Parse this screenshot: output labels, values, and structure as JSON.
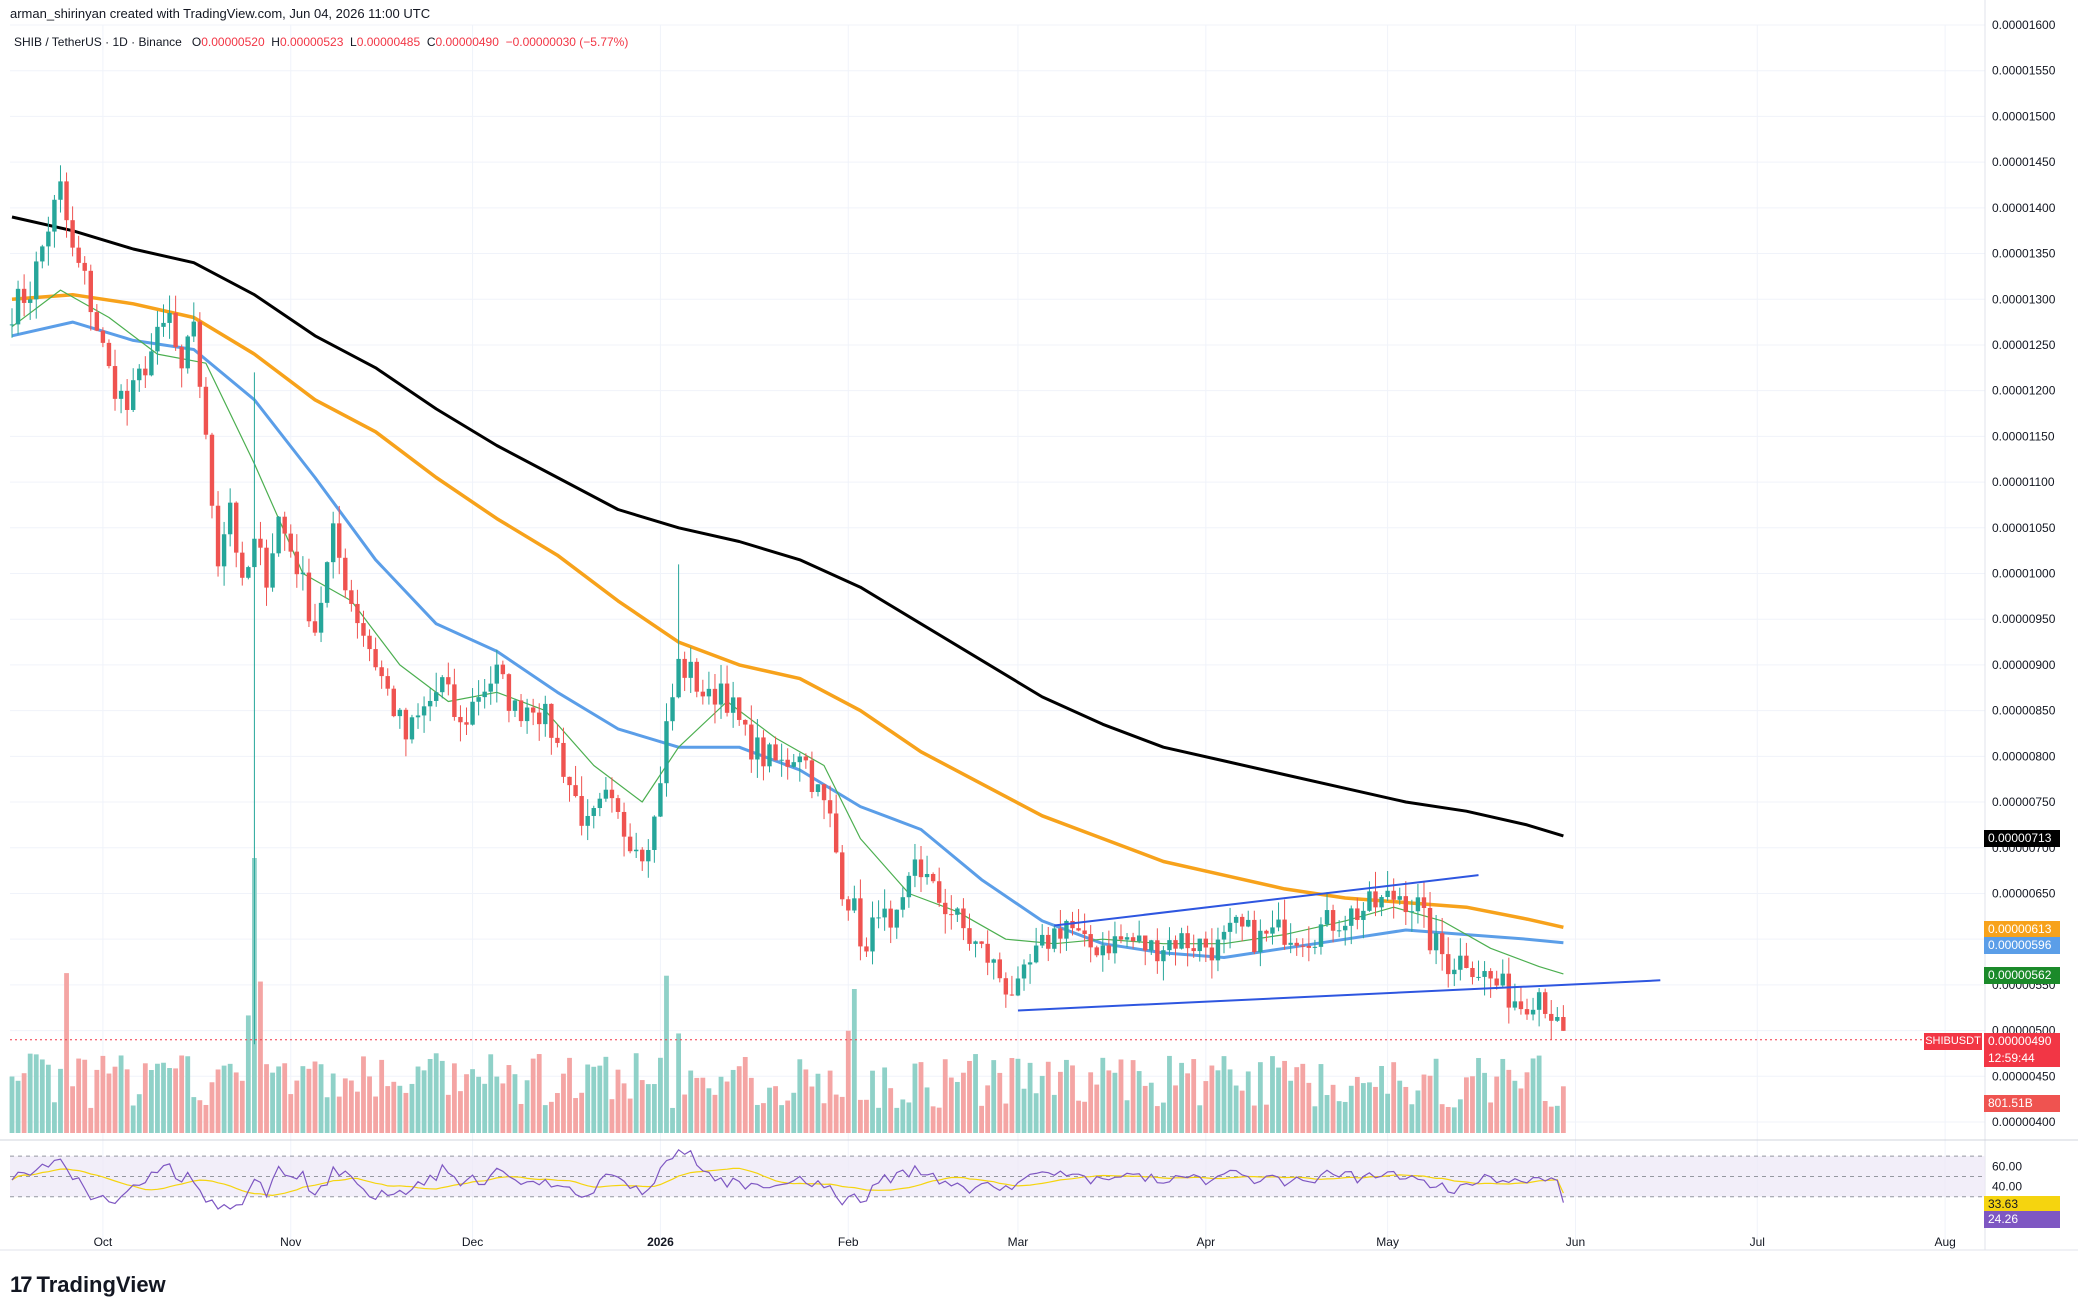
{
  "header": {
    "attribution": "arman_shirinyan created with TradingView.com, Jun 04, 2026 11:00 UTC"
  },
  "legend": {
    "symbol": "SHIB / TetherUS · 1D · Binance",
    "o_label": "O",
    "o_value": "0.00000520",
    "h_label": "H",
    "h_value": "0.00000523",
    "l_label": "L",
    "l_value": "0.00000485",
    "c_label": "C",
    "c_value": "0.00000490",
    "change": "−0.00000030 (−5.77%)"
  },
  "badges": {
    "ma200": "0.00000713",
    "ma100": "0.00000613",
    "ma50": "0.00000596",
    "ma20": "0.00000562",
    "symbol": "SHIBUSDT",
    "last": "0.00000490",
    "countdown": "12:59:44",
    "volume": "801.51B",
    "rsi_signal": "33.63",
    "rsi": "24.26"
  },
  "colors": {
    "up": "#26a69a",
    "down": "#ef5350",
    "up_vol": "#8fd1c8",
    "down_vol": "#f4a5a4",
    "ma200": "#000000",
    "ma100": "#f7a21b",
    "ma50": "#5b9ee8",
    "ma20": "#4caf50",
    "trendline": "#2e56e0",
    "rsi_line": "#7e57c2",
    "rsi_signal": "#f5d40f"
  },
  "footer": {
    "logo_text": "TradingView",
    "logo_mark": "17"
  },
  "chart_data": {
    "type": "candlestick",
    "symbol": "SHIB / TetherUS",
    "interval": "1D",
    "exchange": "Binance",
    "y_axis_ticks": [
      "0.00001600",
      "0.00001550",
      "0.00001500",
      "0.00001450",
      "0.00001400",
      "0.00001350",
      "0.00001300",
      "0.00001250",
      "0.00001200",
      "0.00001150",
      "0.00001100",
      "0.00001050",
      "0.00001000",
      "0.00000950",
      "0.00000900",
      "0.00000850",
      "0.00000800",
      "0.00000750",
      "0.00000700",
      "0.00000650",
      "0.00000600",
      "0.00000550",
      "0.00000500",
      "0.00000450",
      "0.00000400"
    ],
    "y_axis_values": [
      16.0,
      15.5,
      15.0,
      14.5,
      14.0,
      13.5,
      13.0,
      12.5,
      12.0,
      11.5,
      11.0,
      10.5,
      10.0,
      9.5,
      9.0,
      8.5,
      8.0,
      7.5,
      7.0,
      6.5,
      6.0,
      5.5,
      5.0,
      4.5,
      4.0
    ],
    "ylim": [
      4.0,
      16.0
    ],
    "y_units": "1e-6 USDT",
    "x_axis_ticks": [
      {
        "label": "Oct",
        "day": 15,
        "bold": false
      },
      {
        "label": "Nov",
        "day": 46,
        "bold": false
      },
      {
        "label": "Dec",
        "day": 76,
        "bold": false
      },
      {
        "label": "2026",
        "day": 107,
        "bold": true
      },
      {
        "label": "Feb",
        "day": 138,
        "bold": false
      },
      {
        "label": "Mar",
        "day": 166,
        "bold": false
      },
      {
        "label": "Apr",
        "day": 197,
        "bold": false
      },
      {
        "label": "May",
        "day": 227,
        "bold": false
      },
      {
        "label": "Jun",
        "day": 258,
        "bold": false
      },
      {
        "label": "Jul",
        "day": 288,
        "bold": false
      },
      {
        "label": "Aug",
        "day": 319,
        "bold": false
      }
    ],
    "rsi_axis_ticks": [
      "60.00",
      "40.00"
    ],
    "rsi_axis_values": [
      60,
      40
    ],
    "candle_count": 261,
    "anchors": [
      [
        0,
        12.9
      ],
      [
        3,
        13.1
      ],
      [
        6,
        13.8
      ],
      [
        8,
        14.2
      ],
      [
        10,
        13.5
      ],
      [
        12,
        13.2
      ],
      [
        14,
        12.7
      ],
      [
        16,
        12.2
      ],
      [
        19,
        11.8
      ],
      [
        22,
        12.3
      ],
      [
        26,
        12.8
      ],
      [
        28,
        12.1
      ],
      [
        30,
        12.8
      ],
      [
        32,
        11.4
      ],
      [
        34,
        10.2
      ],
      [
        36,
        10.8
      ],
      [
        38,
        9.8
      ],
      [
        40,
        10.3
      ],
      [
        42,
        10.0
      ],
      [
        44,
        10.6
      ],
      [
        47,
        10.1
      ],
      [
        50,
        9.4
      ],
      [
        53,
        10.4
      ],
      [
        56,
        9.7
      ],
      [
        59,
        9.2
      ],
      [
        62,
        8.7
      ],
      [
        65,
        8.2
      ],
      [
        68,
        8.5
      ],
      [
        71,
        8.8
      ],
      [
        74,
        8.3
      ],
      [
        77,
        8.7
      ],
      [
        80,
        8.9
      ],
      [
        83,
        8.5
      ],
      [
        86,
        8.6
      ],
      [
        89,
        8.3
      ],
      [
        92,
        7.7
      ],
      [
        95,
        7.2
      ],
      [
        98,
        7.5
      ],
      [
        101,
        7.2
      ],
      [
        104,
        7.0
      ],
      [
        106,
        7.3
      ],
      [
        108,
        8.3
      ],
      [
        110,
        9.0
      ],
      [
        112,
        8.9
      ],
      [
        115,
        8.6
      ],
      [
        117,
        8.8
      ],
      [
        119,
        8.5
      ],
      [
        121,
        8.2
      ],
      [
        124,
        8.0
      ],
      [
        127,
        7.9
      ],
      [
        130,
        8.1
      ],
      [
        133,
        7.6
      ],
      [
        135,
        7.3
      ],
      [
        137,
        6.6
      ],
      [
        139,
        6.3
      ],
      [
        141,
        5.8
      ],
      [
        143,
        6.4
      ],
      [
        145,
        6.0
      ],
      [
        147,
        6.3
      ],
      [
        149,
        6.9
      ],
      [
        152,
        6.5
      ],
      [
        155,
        6.3
      ],
      [
        158,
        6.0
      ],
      [
        161,
        5.8
      ],
      [
        164,
        5.5
      ],
      [
        166,
        5.4
      ],
      [
        168,
        5.7
      ],
      [
        171,
        6.0
      ],
      [
        174,
        6.2
      ],
      [
        177,
        5.9
      ],
      [
        180,
        5.95
      ],
      [
        184,
        6.0
      ],
      [
        188,
        5.9
      ],
      [
        192,
        6.0
      ],
      [
        196,
        5.95
      ],
      [
        199,
        5.9
      ],
      [
        202,
        6.1
      ],
      [
        206,
        6.0
      ],
      [
        210,
        6.1
      ],
      [
        214,
        6.05
      ],
      [
        218,
        6.2
      ],
      [
        222,
        6.3
      ],
      [
        226,
        6.4
      ],
      [
        229,
        6.5
      ],
      [
        232,
        6.35
      ],
      [
        234,
        6.0
      ],
      [
        237,
        5.75
      ],
      [
        240,
        5.8
      ],
      [
        243,
        5.6
      ],
      [
        246,
        5.45
      ],
      [
        249,
        5.3
      ],
      [
        252,
        5.45
      ],
      [
        254,
        5.2
      ],
      [
        255,
        5.0
      ],
      [
        256,
        4.9
      ]
    ],
    "notable": {
      "spike_low": {
        "day": 40,
        "low": 4.85,
        "high": 12.2
      },
      "spike_high_jan": {
        "day": 110,
        "high": 10.1
      }
    },
    "moving_averages": [
      {
        "name": "MA 200",
        "color": "#000000",
        "last": 7.13,
        "points": [
          [
            0,
            13.9
          ],
          [
            10,
            13.75
          ],
          [
            20,
            13.55
          ],
          [
            30,
            13.4
          ],
          [
            40,
            13.05
          ],
          [
            50,
            12.6
          ],
          [
            60,
            12.25
          ],
          [
            70,
            11.8
          ],
          [
            80,
            11.4
          ],
          [
            90,
            11.05
          ],
          [
            100,
            10.7
          ],
          [
            110,
            10.5
          ],
          [
            120,
            10.35
          ],
          [
            130,
            10.15
          ],
          [
            140,
            9.85
          ],
          [
            150,
            9.45
          ],
          [
            160,
            9.05
          ],
          [
            170,
            8.65
          ],
          [
            180,
            8.35
          ],
          [
            190,
            8.1
          ],
          [
            200,
            7.95
          ],
          [
            210,
            7.8
          ],
          [
            220,
            7.65
          ],
          [
            230,
            7.5
          ],
          [
            240,
            7.4
          ],
          [
            250,
            7.25
          ],
          [
            256,
            7.13
          ]
        ]
      },
      {
        "name": "MA 100",
        "color": "#f7a21b",
        "last": 6.13,
        "points": [
          [
            0,
            13.0
          ],
          [
            10,
            13.05
          ],
          [
            20,
            12.95
          ],
          [
            30,
            12.8
          ],
          [
            40,
            12.4
          ],
          [
            50,
            11.9
          ],
          [
            60,
            11.55
          ],
          [
            70,
            11.05
          ],
          [
            80,
            10.6
          ],
          [
            90,
            10.2
          ],
          [
            100,
            9.7
          ],
          [
            110,
            9.25
          ],
          [
            120,
            9.0
          ],
          [
            130,
            8.85
          ],
          [
            140,
            8.5
          ],
          [
            150,
            8.05
          ],
          [
            160,
            7.7
          ],
          [
            170,
            7.35
          ],
          [
            180,
            7.1
          ],
          [
            190,
            6.85
          ],
          [
            200,
            6.7
          ],
          [
            210,
            6.55
          ],
          [
            220,
            6.45
          ],
          [
            230,
            6.4
          ],
          [
            240,
            6.35
          ],
          [
            250,
            6.22
          ],
          [
            256,
            6.13
          ]
        ]
      },
      {
        "name": "MA 50",
        "color": "#5b9ee8",
        "last": 5.96,
        "points": [
          [
            0,
            12.6
          ],
          [
            10,
            12.75
          ],
          [
            20,
            12.55
          ],
          [
            30,
            12.45
          ],
          [
            40,
            11.9
          ],
          [
            50,
            11.05
          ],
          [
            60,
            10.15
          ],
          [
            70,
            9.45
          ],
          [
            80,
            9.15
          ],
          [
            90,
            8.7
          ],
          [
            100,
            8.3
          ],
          [
            110,
            8.1
          ],
          [
            120,
            8.1
          ],
          [
            130,
            7.85
          ],
          [
            140,
            7.45
          ],
          [
            150,
            7.2
          ],
          [
            160,
            6.65
          ],
          [
            170,
            6.2
          ],
          [
            180,
            5.95
          ],
          [
            190,
            5.85
          ],
          [
            200,
            5.8
          ],
          [
            210,
            5.9
          ],
          [
            220,
            6.0
          ],
          [
            230,
            6.1
          ],
          [
            240,
            6.05
          ],
          [
            250,
            6.0
          ],
          [
            256,
            5.96
          ]
        ]
      },
      {
        "name": "MA 20",
        "color": "#4caf50",
        "last": 5.62,
        "points": [
          [
            0,
            12.7
          ],
          [
            8,
            13.1
          ],
          [
            16,
            12.8
          ],
          [
            24,
            12.4
          ],
          [
            32,
            12.3
          ],
          [
            40,
            11.2
          ],
          [
            48,
            10.0
          ],
          [
            56,
            9.7
          ],
          [
            64,
            9.0
          ],
          [
            72,
            8.6
          ],
          [
            80,
            8.7
          ],
          [
            88,
            8.5
          ],
          [
            96,
            7.9
          ],
          [
            104,
            7.5
          ],
          [
            110,
            8.1
          ],
          [
            118,
            8.6
          ],
          [
            126,
            8.2
          ],
          [
            134,
            7.9
          ],
          [
            140,
            7.1
          ],
          [
            148,
            6.5
          ],
          [
            156,
            6.3
          ],
          [
            164,
            6.0
          ],
          [
            172,
            5.95
          ],
          [
            180,
            6.0
          ],
          [
            190,
            5.95
          ],
          [
            200,
            5.95
          ],
          [
            210,
            6.05
          ],
          [
            220,
            6.2
          ],
          [
            228,
            6.35
          ],
          [
            236,
            6.2
          ],
          [
            244,
            5.9
          ],
          [
            252,
            5.7
          ],
          [
            256,
            5.62
          ]
        ]
      }
    ],
    "trendlines": [
      {
        "from": [
          172,
          6.15
        ],
        "to": [
          242,
          6.7
        ]
      },
      {
        "from": [
          166,
          5.22
        ],
        "to": [
          272,
          5.55
        ]
      }
    ],
    "volume": {
      "last": "801.51B"
    },
    "rsi": {
      "last": 24.26,
      "signal_last": 33.63,
      "band_upper": 70,
      "band_lower": 30,
      "mid": 50
    }
  }
}
